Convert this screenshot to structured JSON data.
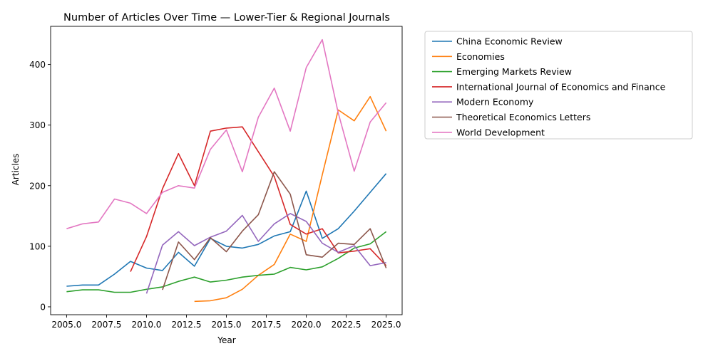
{
  "chart_data": {
    "type": "line",
    "title": "Number of Articles Over Time — Lower-Tier & Regional Journals",
    "xlabel": "Year",
    "ylabel": "Articles",
    "xlim": [
      2004.0,
      2026.0
    ],
    "ylim": [
      -13,
      463
    ],
    "xticks": [
      2005.0,
      2007.5,
      2010.0,
      2012.5,
      2015.0,
      2017.5,
      2020.0,
      2022.5,
      2025.0
    ],
    "xtick_labels": [
      "2005.0",
      "2007.5",
      "2010.0",
      "2012.5",
      "2015.0",
      "2017.5",
      "2020.0",
      "2022.5",
      "2025.0"
    ],
    "yticks": [
      0,
      100,
      200,
      300,
      400
    ],
    "ytick_labels": [
      "0",
      "100",
      "200",
      "300",
      "400"
    ],
    "grid": false,
    "legend_position": "outside-right",
    "series": [
      {
        "name": "China Economic Review",
        "color": "#1f77b4",
        "x": [
          2005,
          2006,
          2007,
          2008,
          2009,
          2010,
          2011,
          2012,
          2013,
          2014,
          2015,
          2016,
          2017,
          2018,
          2019,
          2020,
          2021,
          2022,
          2023,
          2024,
          2025
        ],
        "values": [
          34,
          36,
          36,
          54,
          75,
          64,
          60,
          90,
          67,
          113,
          100,
          97,
          103,
          117,
          124,
          191,
          113,
          129,
          158,
          189,
          220
        ]
      },
      {
        "name": "Economies",
        "color": "#ff7f0e",
        "x": [
          2013,
          2014,
          2015,
          2016,
          2017,
          2018,
          2019,
          2020,
          2021,
          2022,
          2023,
          2024,
          2025
        ],
        "values": [
          9,
          10,
          15,
          29,
          52,
          70,
          120,
          108,
          218,
          325,
          307,
          347,
          290
        ]
      },
      {
        "name": "Emerging Markets Review",
        "color": "#2ca02c",
        "x": [
          2005,
          2006,
          2007,
          2008,
          2009,
          2010,
          2011,
          2012,
          2013,
          2014,
          2015,
          2016,
          2017,
          2018,
          2019,
          2020,
          2021,
          2022,
          2023,
          2024,
          2025
        ],
        "values": [
          25,
          28,
          28,
          24,
          24,
          29,
          33,
          42,
          49,
          41,
          44,
          49,
          52,
          54,
          65,
          61,
          66,
          80,
          97,
          104,
          124
        ]
      },
      {
        "name": "International Journal of Economics and Finance",
        "color": "#d62728",
        "x": [
          2009,
          2010,
          2011,
          2012,
          2013,
          2014,
          2015,
          2016,
          2017,
          2018,
          2019,
          2020,
          2021,
          2022,
          2023,
          2024,
          2025
        ],
        "values": [
          58,
          116,
          195,
          253,
          200,
          290,
          295,
          297,
          256,
          215,
          136,
          120,
          129,
          89,
          92,
          96,
          68
        ]
      },
      {
        "name": "Modern Economy",
        "color": "#9467bd",
        "x": [
          2010,
          2011,
          2012,
          2013,
          2014,
          2015,
          2016,
          2017,
          2018,
          2019,
          2020,
          2021,
          2022,
          2023,
          2024,
          2025
        ],
        "values": [
          22,
          102,
          124,
          101,
          115,
          125,
          151,
          108,
          137,
          154,
          141,
          105,
          90,
          101,
          68,
          73
        ]
      },
      {
        "name": "Theoretical Economics Letters",
        "color": "#8c564b",
        "x": [
          2011,
          2012,
          2013,
          2014,
          2015,
          2016,
          2017,
          2018,
          2019,
          2020,
          2021,
          2022,
          2023,
          2024,
          2025
        ],
        "values": [
          28,
          107,
          78,
          114,
          91,
          125,
          152,
          223,
          186,
          86,
          82,
          105,
          103,
          129,
          64
        ]
      },
      {
        "name": "World Development",
        "color": "#e377c2",
        "x": [
          2005,
          2006,
          2007,
          2008,
          2009,
          2010,
          2011,
          2012,
          2013,
          2014,
          2015,
          2016,
          2017,
          2018,
          2019,
          2020,
          2021,
          2022,
          2023,
          2024,
          2025
        ],
        "values": [
          129,
          137,
          140,
          178,
          171,
          154,
          189,
          200,
          196,
          260,
          292,
          223,
          313,
          361,
          290,
          395,
          441,
          320,
          224,
          305,
          337
        ]
      }
    ]
  }
}
